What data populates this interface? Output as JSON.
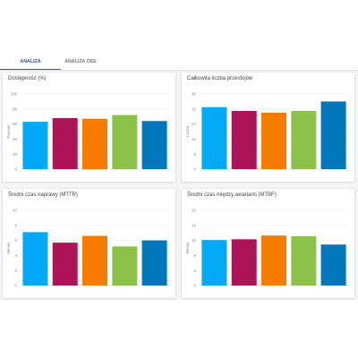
{
  "tabs": [
    {
      "label": "ANALIZA WYKORZYSTANIA",
      "active": true
    },
    {
      "label": "ANALIZA OEE",
      "active": false
    }
  ],
  "palette": [
    "#03a9f4",
    "#ad1457",
    "#f57c00",
    "#8bc34a",
    "#0277bd"
  ],
  "cards": [
    {
      "title": "Dostępność (%)"
    },
    {
      "title": "Całkowita liczba przestojów"
    },
    {
      "title": "Średni czas naprawy (MTTR)"
    },
    {
      "title": "Średni czas między awariami (MTBF)"
    }
  ],
  "chart_data": [
    {
      "type": "bar",
      "title": "Dostępność (%)",
      "ylabel": "Procent",
      "ylim": [
        0,
        100
      ],
      "yticks": [
        "0",
        "20",
        "40",
        "60",
        "80",
        "100"
      ],
      "values": [
        63,
        68,
        67,
        72,
        64
      ],
      "colors": [
        "#03a9f4",
        "#ad1457",
        "#f57c00",
        "#8bc34a",
        "#0277bd"
      ]
    },
    {
      "type": "bar",
      "title": "Całkowita liczba przestojów",
      "ylabel": "Liczba",
      "ylim": [
        0,
        40
      ],
      "yticks": [
        "0",
        "8",
        "16",
        "24",
        "32",
        "40"
      ],
      "values": [
        33,
        31,
        30,
        31,
        36
      ],
      "colors": [
        "#03a9f4",
        "#ad1457",
        "#f57c00",
        "#8bc34a",
        "#0277bd"
      ]
    },
    {
      "type": "bar",
      "title": "Średni czas naprawy (MTTR)",
      "ylabel": "Minuty",
      "ylim": [
        0,
        10
      ],
      "yticks": [
        "0",
        "2",
        "4",
        "6",
        "8",
        "10"
      ],
      "values": [
        7.1,
        5.7,
        6.6,
        5.2,
        6.0
      ],
      "colors": [
        "#03a9f4",
        "#ad1457",
        "#f57c00",
        "#8bc34a",
        "#0277bd"
      ]
    },
    {
      "type": "bar",
      "title": "Średni czas między awariami (MTBF)",
      "ylabel": "Minuty",
      "ylim": [
        0,
        20
      ],
      "yticks": [
        "0",
        "4",
        "8",
        "12",
        "16",
        "20"
      ],
      "values": [
        12.1,
        12.3,
        13.3,
        13.1,
        10.9
      ],
      "colors": [
        "#03a9f4",
        "#ad1457",
        "#f57c00",
        "#8bc34a",
        "#0277bd"
      ]
    }
  ]
}
